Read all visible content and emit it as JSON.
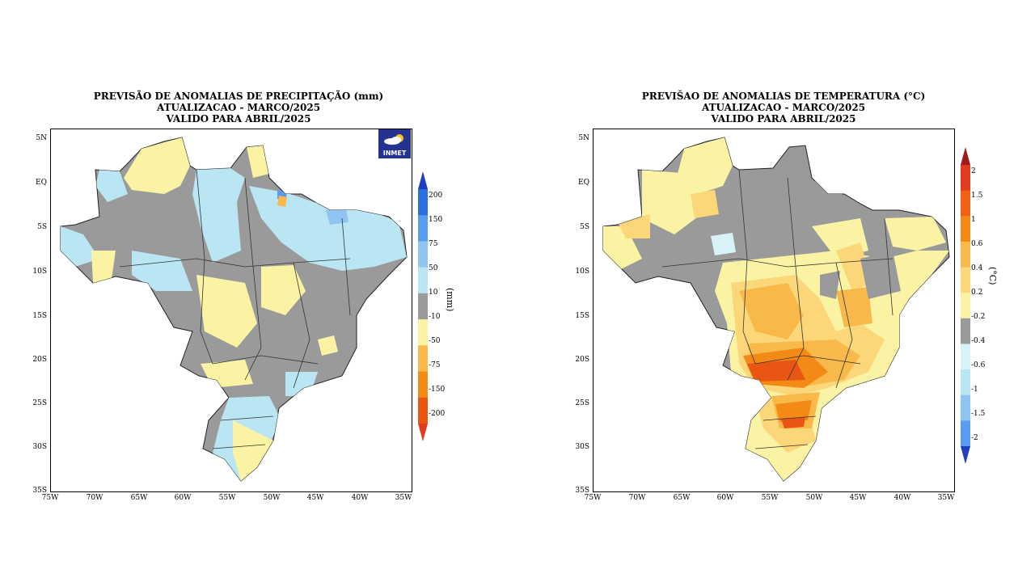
{
  "panels": [
    {
      "id": "precip",
      "title_lines": [
        "PREVISÃO DE ANOMALIAS DE PRECIPITAÇÃO (mm)",
        "ATUALIZACAO - MARCO/2025",
        "VALIDO PARA ABRIL/2025"
      ],
      "colorbar": {
        "unit": "(mm)",
        "labels": [
          "200",
          "150",
          "75",
          "50",
          "10",
          "-10",
          "-50",
          "-75",
          "-150",
          "-200"
        ],
        "colors": [
          "#1f3fbf",
          "#2c6fe0",
          "#5a9cf0",
          "#8fc4f3",
          "#b9e6f2",
          "#9a9a9a",
          "#fbf3a4",
          "#f9b94a",
          "#f38a16",
          "#e95512",
          "#e23b1d"
        ]
      },
      "logo_text": "INMET"
    },
    {
      "id": "temp",
      "title_lines": [
        "PREVIŠAO DE ANOMALIAS DE TEMPERATURA (°C)",
        "ATUALIZACAO - MARCO/2025",
        "VALIDO PARA ABRIL/2025"
      ],
      "colorbar": {
        "unit": "(°C)",
        "labels": [
          "2",
          "1.5",
          "1",
          "0.6",
          "0.4",
          "0.2",
          "-0.2",
          "-0.4",
          "-0.6",
          "-1",
          "-1.5",
          "-2"
        ],
        "colors": [
          "#9e1c1c",
          "#e23b1d",
          "#f06016",
          "#f38a16",
          "#f9b94a",
          "#fbd77a",
          "#fbf3a4",
          "#9a9a9a",
          "#d8f3f8",
          "#b9e6f2",
          "#8fc4f3",
          "#5a9cf0",
          "#1f3fbf"
        ]
      }
    }
  ],
  "axes": {
    "y_ticks": [
      "5N",
      "EQ",
      "5S",
      "10S",
      "15S",
      "20S",
      "25S",
      "30S",
      "35S"
    ],
    "x_ticks": [
      "75W",
      "70W",
      "65W",
      "60W",
      "55W",
      "50W",
      "45W",
      "40W",
      "35W"
    ]
  }
}
